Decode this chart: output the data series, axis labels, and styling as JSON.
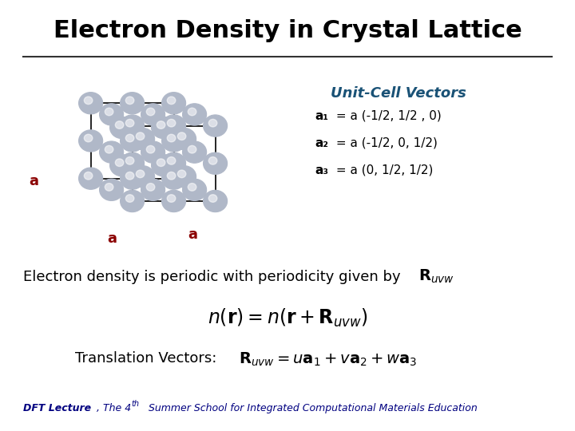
{
  "title": "Electron Density in Crystal Lattice",
  "title_fontsize": 22,
  "title_fontweight": "bold",
  "title_color": "#000000",
  "bg_color": "#ffffff",
  "line_color": "#333333",
  "unit_cell_title": "Unit-Cell Vectors",
  "unit_cell_title_color": "#1a5276",
  "unit_cell_title_style": "italic",
  "unit_cell_title_fontsize": 13,
  "vectors": [
    {
      "label": "a₁",
      "eq": " = a (-1/2, 1/2 , 0)"
    },
    {
      "label": "a₂",
      "eq": " = a (-1/2, 0, 1/2)"
    },
    {
      "label": "a₃",
      "eq": " = a (0, 1/2, 1/2)"
    }
  ],
  "vector_fontsize": 11,
  "vector_color": "#000000",
  "label_a_color": "#8b0000",
  "periodic_text": "Electron density is periodic with periodicity given by ",
  "periodic_fontsize": 13,
  "formula_fontsize": 17,
  "translation_prefix": "Translation Vectors:  ",
  "translation_fontsize": 13,
  "footer_fontsize": 9,
  "footer_color": "#000080"
}
